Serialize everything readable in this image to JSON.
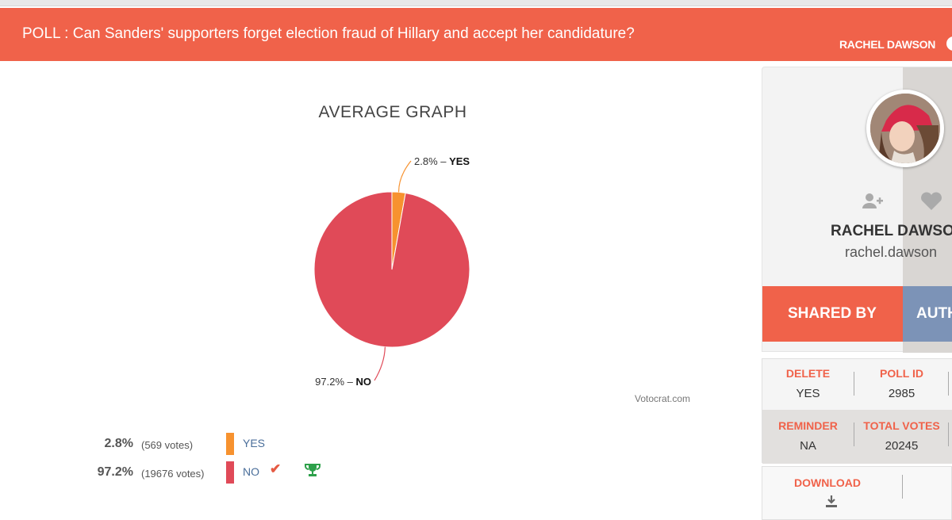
{
  "header": {
    "poll_title": "POLL : Can Sanders' supporters forget election fraud of Hillary and accept her candidature?",
    "user_name": "RACHEL DAWSON",
    "background": "#f0624a"
  },
  "graph": {
    "title": "AVERAGE GRAPH",
    "watermark": "Votocrat.com"
  },
  "chart_data": {
    "type": "pie",
    "title": "AVERAGE GRAPH",
    "slices": [
      {
        "label": "YES",
        "value": 2.8,
        "color": "#f7922f",
        "display_pct": "2.8%"
      },
      {
        "label": "NO",
        "value": 97.2,
        "color": "#e04a58",
        "display_pct": "97.2%"
      }
    ]
  },
  "results": [
    {
      "pct": "2.8%",
      "votes": "(569 votes)",
      "label": "YES",
      "color": "#f7922f",
      "winner": false
    },
    {
      "pct": "97.2%",
      "votes": "(19676 votes)",
      "label": "NO",
      "color": "#e04a58",
      "winner": true
    }
  ],
  "profile": {
    "name": "RACHEL DAWSO",
    "handle": "rachel.dawson",
    "follow_icon": "add-user-icon",
    "like_icon": "heart-icon"
  },
  "tabs": {
    "shared_by": "SHARED BY",
    "author": "AUTH"
  },
  "info": {
    "delete_key": "DELETE",
    "delete_val": "YES",
    "poll_id_key": "POLL ID",
    "poll_id_val": "2985",
    "reminder_key": "REMINDER",
    "reminder_val": "NA",
    "total_votes_key": "TOTAL VOTES",
    "total_votes_val": "20245"
  },
  "download": {
    "label": "DOWNLOAD",
    "icon": "download-icon"
  }
}
